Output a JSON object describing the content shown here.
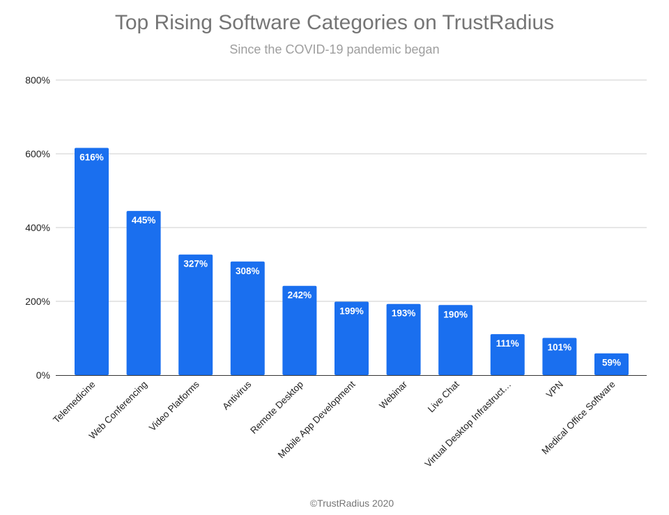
{
  "chart_data": {
    "type": "bar",
    "title": "Top Rising Software Categories on TrustRadius",
    "subtitle": "Since the COVID-19 pandemic began",
    "categories": [
      "Telemedicine",
      "Web Conferencing",
      "Video Platforms",
      "Antivirus",
      "Remote Desktop",
      "Mobile App Development",
      "Webinar",
      "Live Chat",
      "Virtual Desktop Infrastruct…",
      "VPN",
      "Medical Office Software"
    ],
    "values": [
      616,
      445,
      327,
      308,
      242,
      199,
      193,
      190,
      111,
      101,
      59
    ],
    "value_labels": [
      "616%",
      "445%",
      "327%",
      "308%",
      "242%",
      "199%",
      "193%",
      "190%",
      "111%",
      "101%",
      "59%"
    ],
    "ylim": [
      0,
      800
    ],
    "yticks": [
      0,
      200,
      400,
      600,
      800
    ],
    "ytick_labels": [
      "0%",
      "200%",
      "400%",
      "600%",
      "800%"
    ],
    "grid": true,
    "bar_color": "#1a6fef",
    "footer": "©TrustRadius 2020"
  }
}
